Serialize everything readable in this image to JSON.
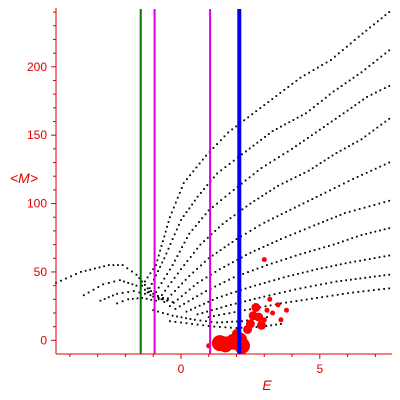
{
  "chart_data": {
    "type": "scatter",
    "title": "",
    "xlabel": "E",
    "ylabel": "<M>",
    "xlim": [
      -4.5,
      7.6
    ],
    "ylim": [
      -10,
      243
    ],
    "x_ticks": [
      0,
      5
    ],
    "x_tick_labels": [
      "0",
      "5"
    ],
    "y_ticks": [
      0,
      50,
      100,
      150,
      200
    ],
    "y_tick_labels": [
      "0",
      "50",
      "100",
      "150",
      "200"
    ],
    "grid": false,
    "legend": "none",
    "colors": {
      "axis": "#e00000",
      "points": "#000000",
      "highlight_points": "#ff0000",
      "line_green": "#007700",
      "line_magenta": "#dd00dd",
      "line_blue": "#0000ee"
    },
    "vertical_lines": [
      {
        "x": -1.45,
        "color": "#007700"
      },
      {
        "x": -0.95,
        "color": "#dd00dd"
      },
      {
        "x": 1.05,
        "color": "#dd00dd"
      },
      {
        "x": 2.1,
        "color": "#0000ee"
      }
    ],
    "dotted_curves": [
      {
        "points": [
          [
            -4.5,
            42
          ],
          [
            -3.6,
            50
          ],
          [
            -2.6,
            55
          ],
          [
            -2.1,
            55
          ],
          [
            -1.6,
            48
          ],
          [
            -1.2,
            38
          ],
          [
            -0.7,
            30
          ]
        ]
      },
      {
        "points": [
          [
            -3.5,
            33
          ],
          [
            -2.8,
            41
          ],
          [
            -2.2,
            44
          ],
          [
            -1.6,
            40
          ],
          [
            -1.0,
            34
          ],
          [
            -0.3,
            28
          ]
        ]
      },
      {
        "points": [
          [
            -2.9,
            29
          ],
          [
            -2.3,
            34
          ],
          [
            -1.7,
            36
          ],
          [
            -1.1,
            33
          ],
          [
            -0.5,
            29
          ]
        ]
      },
      {
        "points": [
          [
            -2.3,
            27
          ],
          [
            -1.9,
            30
          ],
          [
            -1.4,
            31
          ],
          [
            -0.9,
            29
          ]
        ]
      },
      {
        "points": [
          [
            -1.4,
            40
          ],
          [
            -0.9,
            55
          ],
          [
            -0.4,
            90
          ],
          [
            0.1,
            115
          ],
          [
            0.9,
            135
          ],
          [
            1.7,
            152
          ],
          [
            3.0,
            172
          ],
          [
            4.3,
            192
          ],
          [
            5.4,
            205
          ],
          [
            6.4,
            222
          ],
          [
            7.5,
            240
          ]
        ]
      },
      {
        "points": [
          [
            -1.2,
            35
          ],
          [
            -0.6,
            60
          ],
          [
            0.0,
            88
          ],
          [
            0.6,
            105
          ],
          [
            1.3,
            122
          ],
          [
            2.2,
            136
          ],
          [
            3.3,
            153
          ],
          [
            4.5,
            166
          ],
          [
            5.5,
            182
          ],
          [
            6.5,
            196
          ],
          [
            7.5,
            212
          ]
        ]
      },
      {
        "points": [
          [
            -1.0,
            32
          ],
          [
            -0.3,
            55
          ],
          [
            0.3,
            78
          ],
          [
            1.0,
            95
          ],
          [
            1.9,
            110
          ],
          [
            2.9,
            126
          ],
          [
            4.0,
            140
          ],
          [
            5.0,
            154
          ],
          [
            6.0,
            168
          ],
          [
            6.7,
            178
          ],
          [
            7.5,
            186
          ]
        ]
      },
      {
        "points": [
          [
            -0.8,
            30
          ],
          [
            0.0,
            52
          ],
          [
            0.7,
            70
          ],
          [
            1.5,
            85
          ],
          [
            2.5,
            100
          ],
          [
            3.5,
            113
          ],
          [
            4.6,
            124
          ],
          [
            5.6,
            137
          ],
          [
            6.5,
            147
          ],
          [
            7.5,
            162
          ]
        ]
      },
      {
        "points": [
          [
            -0.6,
            28
          ],
          [
            0.3,
            47
          ],
          [
            1.0,
            60
          ],
          [
            2.0,
            74
          ],
          [
            3.0,
            86
          ],
          [
            4.1,
            97
          ],
          [
            5.2,
            108
          ],
          [
            6.2,
            118
          ],
          [
            7.5,
            130
          ]
        ]
      },
      {
        "points": [
          [
            -0.4,
            25
          ],
          [
            0.6,
            42
          ],
          [
            1.4,
            52
          ],
          [
            2.5,
            64
          ],
          [
            3.6,
            74
          ],
          [
            4.8,
            84
          ],
          [
            5.9,
            93
          ],
          [
            7.5,
            102
          ]
        ]
      },
      {
        "points": [
          [
            -0.2,
            23
          ],
          [
            0.9,
            36
          ],
          [
            1.9,
            46
          ],
          [
            3.1,
            55
          ],
          [
            4.3,
            63
          ],
          [
            5.5,
            70
          ],
          [
            6.5,
            77
          ],
          [
            7.5,
            82
          ]
        ]
      },
      {
        "points": [
          [
            0.2,
            21
          ],
          [
            1.3,
            31
          ],
          [
            2.5,
            39
          ],
          [
            3.7,
            46
          ],
          [
            4.9,
            52
          ],
          [
            6.1,
            57
          ],
          [
            7.5,
            62
          ]
        ]
      },
      {
        "points": [
          [
            0.6,
            19
          ],
          [
            1.8,
            26
          ],
          [
            3.0,
            32
          ],
          [
            4.3,
            38
          ],
          [
            5.6,
            43
          ],
          [
            7.5,
            48
          ]
        ]
      },
      {
        "points": [
          [
            1.0,
            17
          ],
          [
            2.3,
            22
          ],
          [
            3.6,
            27
          ],
          [
            4.9,
            31
          ],
          [
            6.2,
            35
          ],
          [
            7.5,
            38
          ]
        ]
      },
      {
        "points": [
          [
            -1.0,
            22
          ],
          [
            -0.3,
            18
          ],
          [
            0.5,
            15
          ],
          [
            1.3,
            13
          ],
          [
            2.2,
            14
          ],
          [
            3.1,
            17
          ]
        ]
      },
      {
        "points": [
          [
            -0.4,
            14
          ],
          [
            0.4,
            12
          ],
          [
            1.2,
            10
          ],
          [
            2.0,
            9
          ],
          [
            2.9,
            10
          ],
          [
            3.6,
            12
          ]
        ]
      }
    ],
    "highlight_points": [
      {
        "x": 1.4,
        "y": -2,
        "size": "large"
      },
      {
        "x": 1.6,
        "y": -3,
        "size": "large"
      },
      {
        "x": 1.9,
        "y": -1,
        "size": "large"
      },
      {
        "x": 2.1,
        "y": 0,
        "size": "large"
      },
      {
        "x": 2.2,
        "y": -4,
        "size": "large"
      },
      {
        "x": 2.5,
        "y": 12,
        "size": "medium"
      },
      {
        "x": 2.6,
        "y": 18,
        "size": "medium"
      },
      {
        "x": 2.7,
        "y": 24,
        "size": "medium"
      },
      {
        "x": 2.8,
        "y": 17,
        "size": "medium"
      },
      {
        "x": 2.9,
        "y": 11,
        "size": "medium"
      },
      {
        "x": 3.0,
        "y": 15,
        "size": "small"
      },
      {
        "x": 3.1,
        "y": 22,
        "size": "small"
      },
      {
        "x": 3.3,
        "y": 20,
        "size": "small"
      },
      {
        "x": 3.5,
        "y": 26,
        "size": "small"
      },
      {
        "x": 3.6,
        "y": 15,
        "size": "small"
      },
      {
        "x": 3.8,
        "y": 22,
        "size": "small"
      },
      {
        "x": 2.4,
        "y": 8,
        "size": "medium"
      },
      {
        "x": 2.0,
        "y": 5,
        "size": "medium"
      },
      {
        "x": 1.0,
        "y": -4,
        "size": "small"
      },
      {
        "x": 3.0,
        "y": 59,
        "size": "small"
      },
      {
        "x": 3.2,
        "y": 30,
        "size": "small"
      }
    ]
  }
}
